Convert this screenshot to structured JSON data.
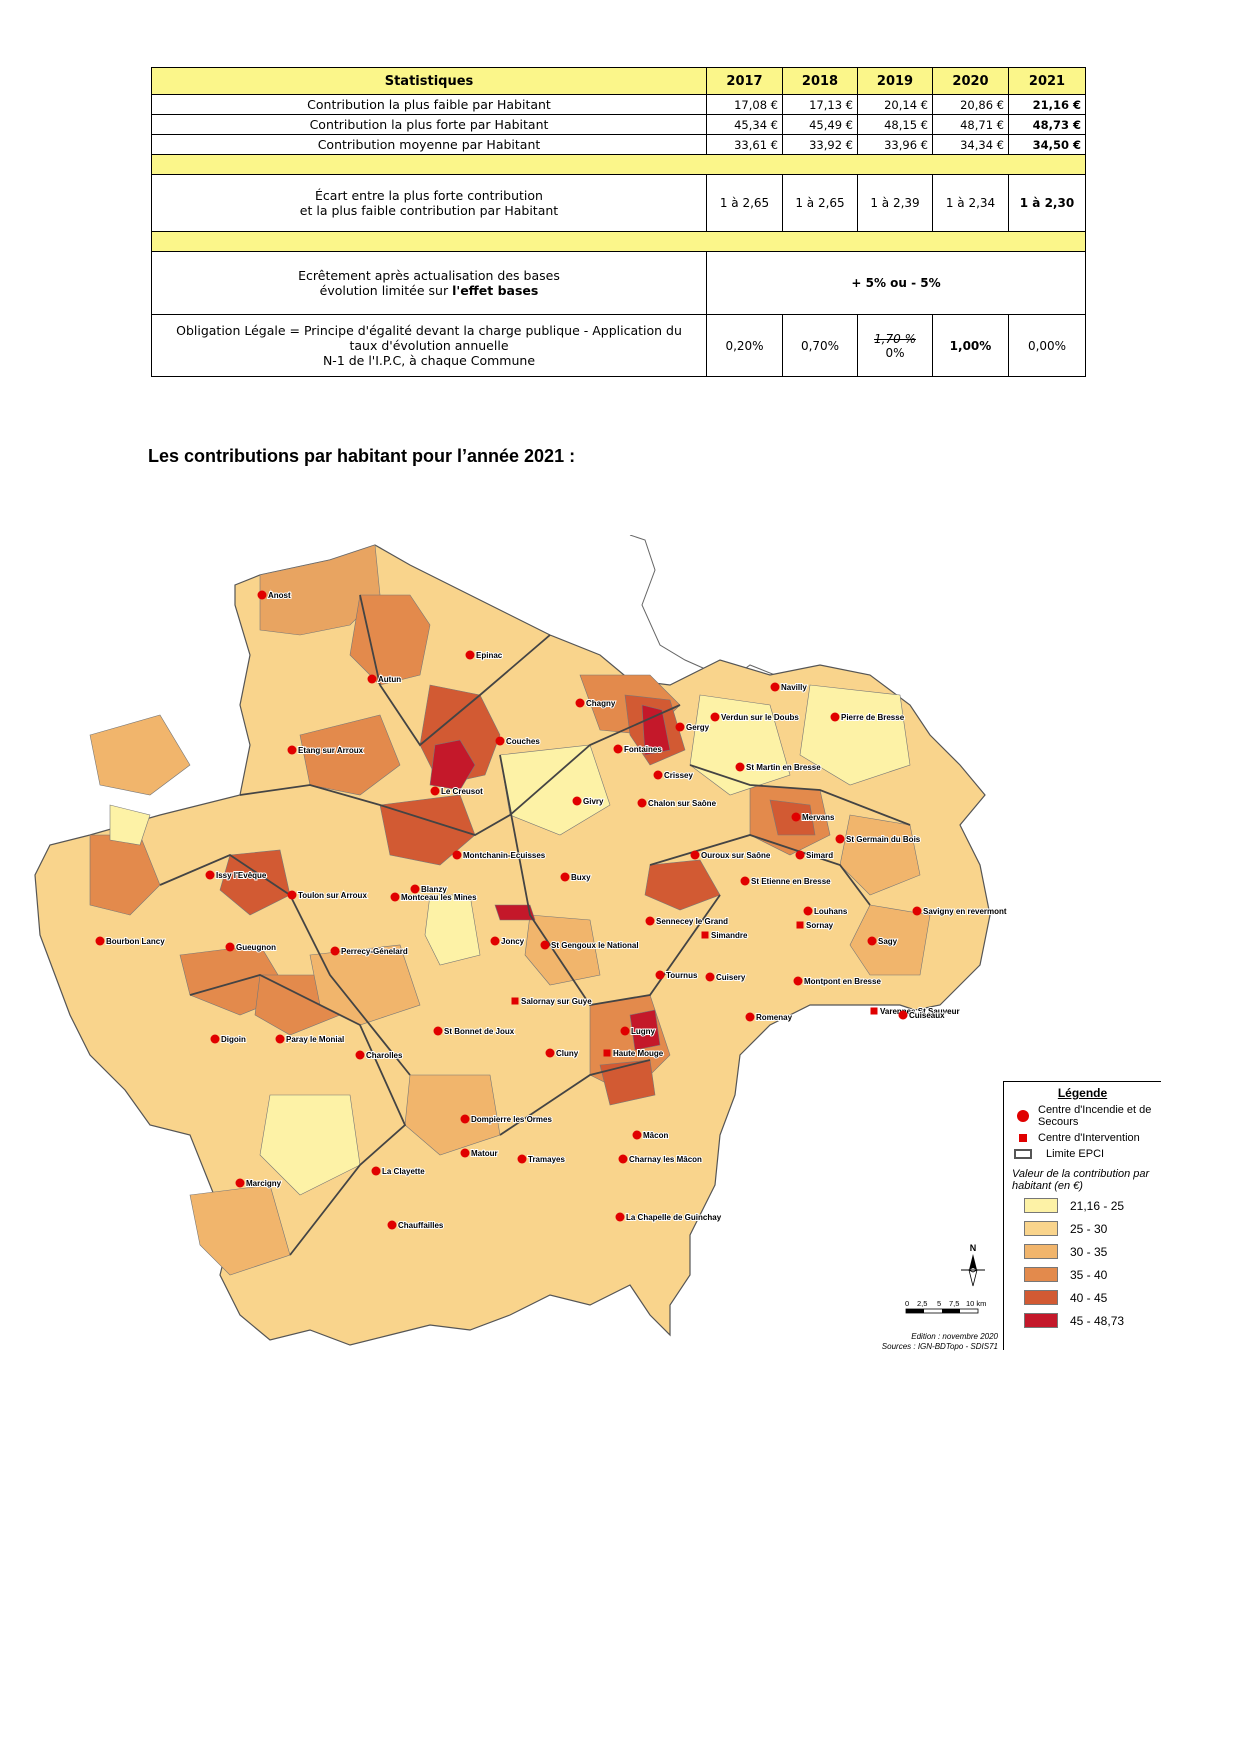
{
  "table": {
    "header": {
      "label": "Statistiques",
      "years": [
        "2017",
        "2018",
        "2019",
        "2020",
        "2021"
      ]
    },
    "rows": [
      {
        "label": "Contribution la plus faible par Habitant",
        "values": [
          "17,08 €",
          "17,13 €",
          "20,14 €",
          "20,86 €",
          "21,16 €"
        ]
      },
      {
        "label": "Contribution la plus forte par Habitant",
        "values": [
          "45,34 €",
          "45,49 €",
          "48,15 €",
          "48,71 €",
          "48,73 €"
        ]
      },
      {
        "label": "Contribution moyenne par Habitant",
        "values": [
          "33,61 €",
          "33,92 €",
          "33,96 €",
          "34,34 €",
          "34,50 €"
        ]
      }
    ],
    "ecart": {
      "label_line1": "Écart entre la plus forte contribution",
      "label_line2": "et la plus faible contribution par Habitant",
      "values": [
        "1 à 2,65",
        "1 à 2,65",
        "1 à 2,39",
        "1 à 2,34",
        "1 à 2,30"
      ]
    },
    "ecretement": {
      "label_line1": "Ecrêtement après actualisation des bases",
      "label_line2_prefix": "évolution limitée sur ",
      "label_line2_bold": "l'effet bases",
      "value": "+ 5% ou - 5%"
    },
    "obligation": {
      "label_line1": "Obligation Légale = Principe d'égalité devant la charge publique - Application du",
      "label_line2": "taux d'évolution annuelle",
      "label_line3": "N-1 de l'I.P.C, à chaque Commune",
      "values": [
        "0,20%",
        "0,70%",
        "",
        "1,00%",
        "0,00%"
      ],
      "struck_value": "1,70 %",
      "corrected_value": "0%"
    }
  },
  "heading": "Les contributions par habitant pour l’année 2021 :",
  "map": {
    "towns": [
      "Anost",
      "Epinac",
      "Autun",
      "Chagny",
      "Navilly",
      "Verdun sur le Doubs",
      "Pierre de Bresse",
      "Etang sur Arroux",
      "Couches",
      "Fontaines",
      "Gergy",
      "Crissey",
      "St Martin en Bresse",
      "Le Creusot",
      "Chalon sur Saône",
      "Givry",
      "Mervans",
      "St Germain du Bois",
      "Montchanin-Ecuisses",
      "Ouroux sur Saône",
      "Simard",
      "Issy l'Evêque",
      "Blanzy",
      "Buxy",
      "St Etienne en Bresse",
      "Toulon sur Arroux",
      "Montceau les Mines",
      "Louhans",
      "Savigny en revermont",
      "Sennecey le Grand",
      "Sornay",
      "Bourbon Lancy",
      "Joncy",
      "St Gengoux le National",
      "Simandre",
      "Sagy",
      "Gueugnon",
      "Perrecy-Génelard",
      "Tournus",
      "Cuisery",
      "Montpont en Bresse",
      "Salornay sur Guye",
      "Romenay",
      "Varennes St Sauveur",
      "Cuiseaux",
      "St Bonnet de Joux",
      "Lugny",
      "Digoin",
      "Paray le Monial",
      "Charolles",
      "Cluny",
      "Haute Mouge",
      "Dompierre les Ormes",
      "Mâcon",
      "Matour",
      "Tramayes",
      "Charnay les Mâcon",
      "La Clayette",
      "Marcigny",
      "La Chapelle de Guinchay",
      "Chauffailles"
    ]
  },
  "legend": {
    "title": "Légende",
    "cis": "Centre d'Incendie et de Secours",
    "ci": "Centre d'Intervention",
    "epci": "Limite EPCI",
    "scale_title": "Valeur de la contribution par habitant (en €)",
    "classes": [
      {
        "label": "21,16 - 25",
        "color": "#fdf2a6"
      },
      {
        "label": "25 - 30",
        "color": "#f9d48c"
      },
      {
        "label": "30 - 35",
        "color": "#f1b56c"
      },
      {
        "label": "35 - 40",
        "color": "#e38a4c"
      },
      {
        "label": "40 - 45",
        "color": "#d25a33"
      },
      {
        "label": "45 - 48,73",
        "color": "#c4182a"
      }
    ]
  },
  "scalebar": {
    "ticks": [
      "0",
      "2,5",
      "5",
      "7,5",
      "10 km"
    ]
  },
  "north": "N",
  "edition": "Edition : novembre 2020",
  "sources": "Sources : IGN-BDTopo - SDIS71"
}
